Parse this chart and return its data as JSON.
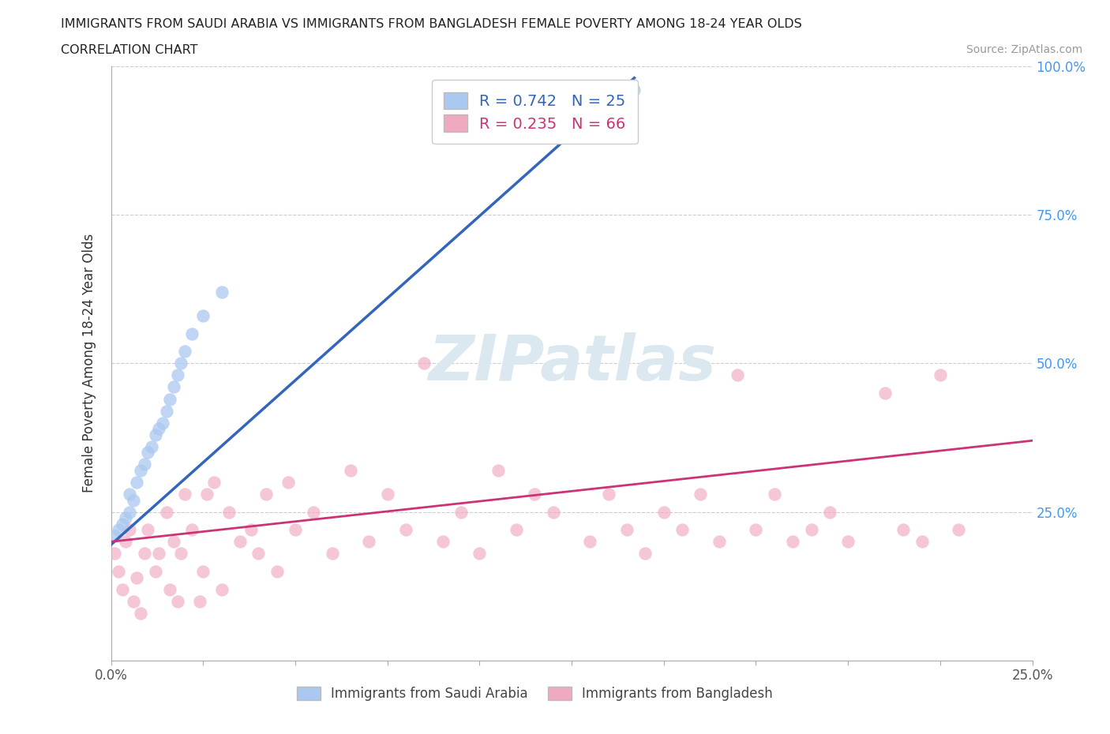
{
  "title_line1": "IMMIGRANTS FROM SAUDI ARABIA VS IMMIGRANTS FROM BANGLADESH FEMALE POVERTY AMONG 18-24 YEAR OLDS",
  "title_line2": "CORRELATION CHART",
  "source_text": "Source: ZipAtlas.com",
  "ylabel": "Female Poverty Among 18-24 Year Olds",
  "xlim": [
    0.0,
    0.25
  ],
  "ylim": [
    0.0,
    1.0
  ],
  "legend_label1": "Immigrants from Saudi Arabia",
  "legend_label2": "Immigrants from Bangladesh",
  "R1": 0.742,
  "N1": 25,
  "R2": 0.235,
  "N2": 66,
  "color1": "#aac8f0",
  "color1_line": "#3366bb",
  "color2": "#f0aac0",
  "color2_line": "#cc3377",
  "watermark_color": "#dce8f0",
  "sa_x": [
    0.001,
    0.002,
    0.003,
    0.004,
    0.005,
    0.005,
    0.006,
    0.007,
    0.008,
    0.009,
    0.01,
    0.011,
    0.012,
    0.013,
    0.014,
    0.015,
    0.016,
    0.017,
    0.018,
    0.019,
    0.02,
    0.022,
    0.025,
    0.03,
    0.142
  ],
  "sa_y": [
    0.21,
    0.22,
    0.23,
    0.24,
    0.25,
    0.28,
    0.27,
    0.3,
    0.32,
    0.33,
    0.35,
    0.36,
    0.38,
    0.39,
    0.4,
    0.42,
    0.44,
    0.46,
    0.48,
    0.5,
    0.52,
    0.55,
    0.58,
    0.62,
    0.96
  ],
  "bd_x": [
    0.001,
    0.002,
    0.003,
    0.004,
    0.005,
    0.006,
    0.007,
    0.008,
    0.009,
    0.01,
    0.012,
    0.013,
    0.015,
    0.016,
    0.017,
    0.018,
    0.019,
    0.02,
    0.022,
    0.024,
    0.025,
    0.026,
    0.028,
    0.03,
    0.032,
    0.035,
    0.038,
    0.04,
    0.042,
    0.045,
    0.048,
    0.05,
    0.055,
    0.06,
    0.065,
    0.07,
    0.075,
    0.08,
    0.085,
    0.09,
    0.095,
    0.1,
    0.105,
    0.11,
    0.115,
    0.12,
    0.13,
    0.135,
    0.14,
    0.145,
    0.15,
    0.155,
    0.16,
    0.165,
    0.17,
    0.175,
    0.18,
    0.185,
    0.19,
    0.195,
    0.2,
    0.21,
    0.215,
    0.22,
    0.225,
    0.23
  ],
  "bd_y": [
    0.18,
    0.15,
    0.12,
    0.2,
    0.22,
    0.1,
    0.14,
    0.08,
    0.18,
    0.22,
    0.15,
    0.18,
    0.25,
    0.12,
    0.2,
    0.1,
    0.18,
    0.28,
    0.22,
    0.1,
    0.15,
    0.28,
    0.3,
    0.12,
    0.25,
    0.2,
    0.22,
    0.18,
    0.28,
    0.15,
    0.3,
    0.22,
    0.25,
    0.18,
    0.32,
    0.2,
    0.28,
    0.22,
    0.5,
    0.2,
    0.25,
    0.18,
    0.32,
    0.22,
    0.28,
    0.25,
    0.2,
    0.28,
    0.22,
    0.18,
    0.25,
    0.22,
    0.28,
    0.2,
    0.48,
    0.22,
    0.28,
    0.2,
    0.22,
    0.25,
    0.2,
    0.45,
    0.22,
    0.2,
    0.48,
    0.22
  ],
  "sa_line_x": [
    0.0,
    0.142
  ],
  "sa_line_y": [
    0.195,
    0.98
  ],
  "bd_line_x": [
    0.0,
    0.25
  ],
  "bd_line_y": [
    0.2,
    0.37
  ]
}
